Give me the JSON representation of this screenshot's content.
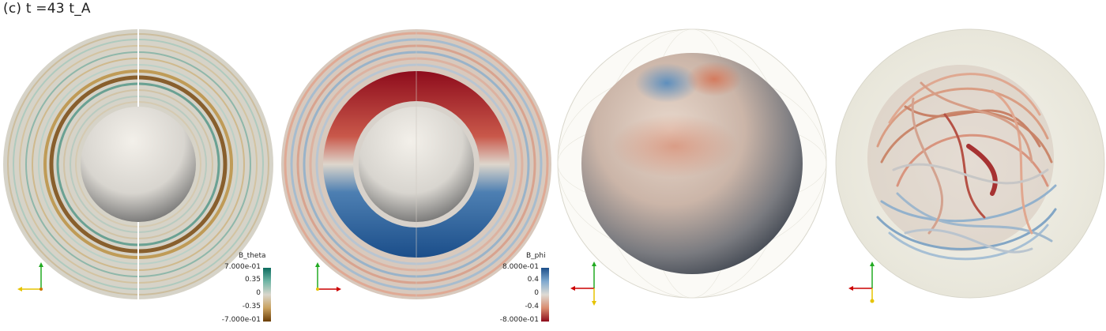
{
  "title": "(c) t =43 t_A",
  "panels": [
    {
      "name": "b-theta-slice",
      "colorbar": {
        "title": "B_theta",
        "ticks": [
          "7.000e-01",
          "0.35",
          "0",
          "-0.35",
          "-7.000e-01"
        ],
        "colors": [
          "#0b6b5e",
          "#6fb5a5",
          "#d9d6cc",
          "#c9a15e",
          "#6b3d06"
        ]
      }
    },
    {
      "name": "b-phi-slice",
      "colorbar": {
        "title": "B_phi",
        "ticks": [
          "8.000e-01",
          "0.4",
          "0",
          "-0.4",
          "-8.000e-01"
        ],
        "colors": [
          "#1b4e8a",
          "#7fa9cf",
          "#dedbd4",
          "#d98c6f",
          "#8e0c1c"
        ]
      }
    },
    {
      "name": "surface-sphere",
      "colorbar": null
    },
    {
      "name": "fieldlines-sphere",
      "colorbar": null
    }
  ],
  "axes_colors": {
    "x": "#cc0000",
    "y": "#22aa22",
    "z": "#e6c300"
  }
}
